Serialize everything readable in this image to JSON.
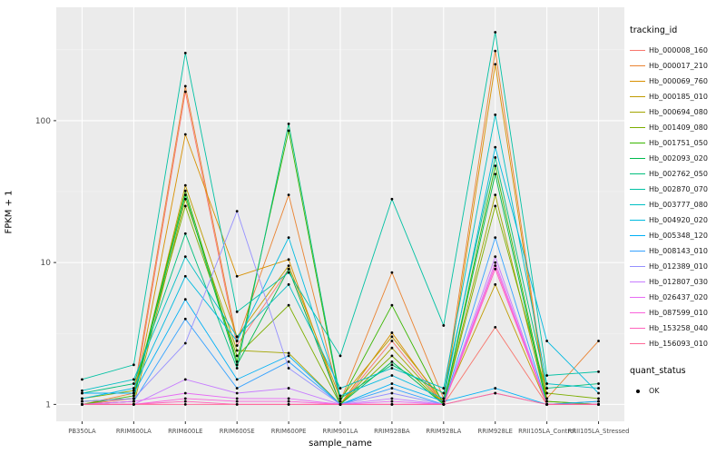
{
  "chart_data": {
    "type": "line",
    "title": "",
    "xlabel": "sample_name",
    "ylabel": "FPKM + 1",
    "y_scale": "log10",
    "y_ticks": [
      1,
      10,
      100
    ],
    "ylim": [
      0.76,
      630
    ],
    "grid": true,
    "panel_bg": "#EBEBEB",
    "grid_major_color": "#FFFFFF",
    "grid_minor_color": "#F5F5F5",
    "point_color": "#000000",
    "tick_label_color": "#4D4D4D",
    "legend_position": "right",
    "legend_series_title": "tracking_id",
    "legend_quant_title": "quant_status",
    "legend_quant_label": "OK",
    "categories": [
      "PB350LA",
      "RRIM600LA",
      "RRIM600LE",
      "RRIM600SE",
      "RRIM600PE",
      "RRIM901LA",
      "RRIM928BA",
      "RRIM928LA",
      "RRIM928LE",
      "RRII105LA_Control",
      "RRII105LA_Stressed"
    ],
    "series": [
      {
        "name": "Hb_000008_160",
        "color": "#F8766D",
        "values": [
          1.0,
          1.1,
          160,
          2.6,
          9.0,
          1.0,
          2.8,
          1.0,
          3.5,
          1.0,
          1.05
        ]
      },
      {
        "name": "Hb_000017_210",
        "color": "#EA8331",
        "values": [
          1.0,
          1.2,
          175,
          2.8,
          30,
          1.05,
          8.5,
          1.1,
          310,
          1.1,
          2.8
        ]
      },
      {
        "name": "Hb_000069_760",
        "color": "#D89000",
        "values": [
          1.0,
          1.05,
          80,
          8.0,
          10.5,
          1.0,
          3.2,
          1.0,
          250,
          1.05,
          1.0
        ]
      },
      {
        "name": "Hb_000185_010",
        "color": "#C09B00",
        "values": [
          1.05,
          1.1,
          35,
          3.0,
          9.5,
          1.1,
          3.0,
          1.05,
          7.0,
          1.0,
          1.0
        ]
      },
      {
        "name": "Hb_000694_080",
        "color": "#A3A500",
        "values": [
          1.0,
          1.0,
          28,
          2.4,
          2.3,
          1.0,
          2.5,
          1.0,
          30,
          1.0,
          1.0
        ]
      },
      {
        "name": "Hb_001409_080",
        "color": "#7CAE00",
        "values": [
          1.1,
          1.25,
          25,
          2.2,
          5.0,
          1.0,
          2.2,
          1.0,
          25,
          1.2,
          1.1
        ]
      },
      {
        "name": "Hb_001751_050",
        "color": "#39B600",
        "values": [
          1.0,
          1.15,
          32,
          2.0,
          85,
          1.05,
          5.0,
          1.0,
          48,
          1.05,
          1.0
        ]
      },
      {
        "name": "Hb_002093_020",
        "color": "#00BB4E",
        "values": [
          1.05,
          1.1,
          30,
          1.9,
          9.0,
          1.0,
          2.0,
          1.0,
          42,
          1.0,
          1.0
        ]
      },
      {
        "name": "Hb_002762_050",
        "color": "#00BF7D",
        "values": [
          1.2,
          1.4,
          16,
          1.8,
          95,
          1.1,
          1.9,
          1.2,
          55,
          1.3,
          1.4
        ]
      },
      {
        "name": "Hb_002870_070",
        "color": "#00C1A3",
        "values": [
          1.5,
          1.9,
          300,
          4.5,
          8.5,
          2.2,
          28,
          3.6,
          420,
          1.6,
          1.7
        ]
      },
      {
        "name": "Hb_003777_080",
        "color": "#00BFC4",
        "values": [
          1.25,
          1.5,
          11,
          3.0,
          7.0,
          1.3,
          1.8,
          1.3,
          110,
          1.4,
          1.3
        ]
      },
      {
        "name": "Hb_004920_020",
        "color": "#00BAE0",
        "values": [
          1.1,
          1.3,
          8.0,
          2.8,
          15,
          1.15,
          1.6,
          1.1,
          65,
          2.8,
          1.2
        ]
      },
      {
        "name": "Hb_005348_120",
        "color": "#00B0F6",
        "values": [
          1.2,
          1.2,
          5.5,
          1.5,
          2.2,
          1.0,
          1.4,
          1.05,
          1.3,
          1.0,
          1.05
        ]
      },
      {
        "name": "Hb_008143_010",
        "color": "#35A2FF",
        "values": [
          1.0,
          1.05,
          4.0,
          1.3,
          2.0,
          1.0,
          1.3,
          1.0,
          15,
          1.0,
          1.0
        ]
      },
      {
        "name": "Hb_012389_010",
        "color": "#9590FF",
        "values": [
          1.05,
          1.1,
          2.7,
          23,
          1.8,
          1.0,
          1.2,
          1.0,
          1.2,
          1.0,
          1.0
        ]
      },
      {
        "name": "Hb_012807_030",
        "color": "#C77CFF",
        "values": [
          1.0,
          1.0,
          1.5,
          1.2,
          1.3,
          1.0,
          1.1,
          1.0,
          11,
          1.0,
          1.0
        ]
      },
      {
        "name": "Hb_026437_020",
        "color": "#E76BF3",
        "values": [
          1.0,
          1.05,
          1.2,
          1.1,
          1.1,
          1.0,
          1.05,
          1.0,
          10,
          1.0,
          1.0
        ]
      },
      {
        "name": "Hb_087599_010",
        "color": "#FA62DB",
        "values": [
          1.0,
          1.0,
          1.1,
          1.05,
          1.05,
          1.0,
          1.0,
          1.0,
          9.5,
          1.0,
          1.0
        ]
      },
      {
        "name": "Hb_153258_040",
        "color": "#FF62BC",
        "values": [
          1.0,
          1.0,
          1.05,
          1.0,
          1.0,
          1.0,
          1.0,
          1.0,
          9.0,
          1.0,
          1.0
        ]
      },
      {
        "name": "Hb_156093_010",
        "color": "#FF6A98",
        "values": [
          1.0,
          1.0,
          1.0,
          1.0,
          1.0,
          1.0,
          1.0,
          1.0,
          1.2,
          1.0,
          1.0
        ]
      }
    ]
  }
}
